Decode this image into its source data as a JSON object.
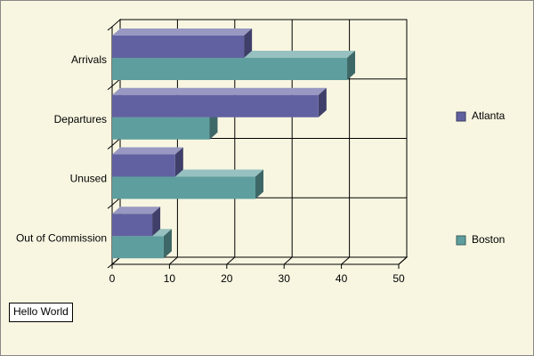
{
  "chart_data": {
    "type": "bar",
    "orientation": "horizontal",
    "three_d": true,
    "categories": [
      "Arrivals",
      "Departures",
      "Unused",
      "Out of Commission"
    ],
    "series": [
      {
        "name": "Atlanta",
        "color": "#6161a1",
        "values": [
          23,
          36,
          11,
          7
        ]
      },
      {
        "name": "Boston",
        "color": "#5f9e9e",
        "values": [
          41,
          17,
          25,
          9
        ]
      }
    ],
    "xlim": [
      0,
      50
    ],
    "xticks": [
      0,
      10,
      20,
      30,
      40,
      50
    ],
    "grid": true,
    "legend": "right",
    "annotation": "Hello World"
  }
}
